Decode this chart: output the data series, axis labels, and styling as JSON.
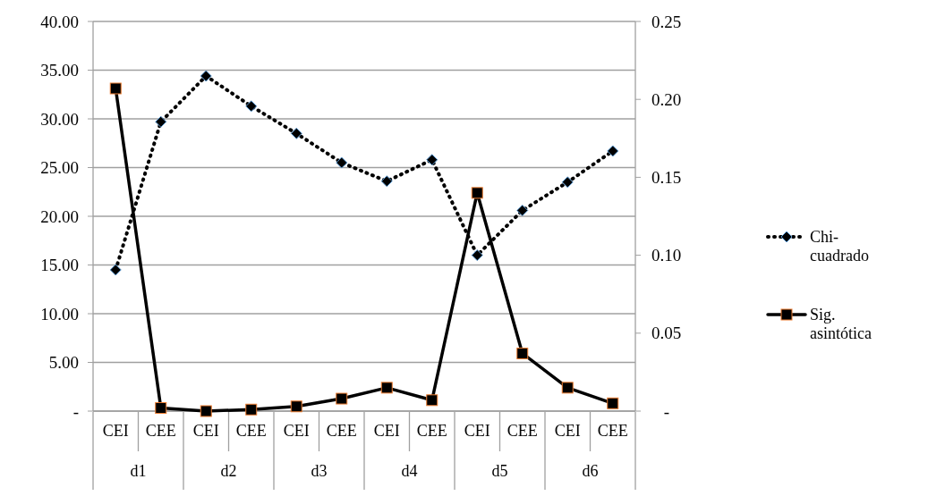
{
  "chart_data": {
    "type": "line",
    "categories": [
      "CEI",
      "CEE",
      "CEI",
      "CEE",
      "CEI",
      "CEE",
      "CEI",
      "CEE",
      "CEI",
      "CEE",
      "CEI",
      "CEE"
    ],
    "annotations": [
      "d1",
      "d2",
      "d3",
      "d4",
      "d5",
      "d6"
    ],
    "ylim": [
      0,
      40
    ],
    "yticks": [
      {
        "value": 0,
        "label": "-"
      },
      {
        "value": 5,
        "label": "5.00"
      },
      {
        "value": 10,
        "label": "10.00"
      },
      {
        "value": 15,
        "label": "15.00"
      },
      {
        "value": 20,
        "label": "20.00"
      },
      {
        "value": 25,
        "label": "25.00"
      },
      {
        "value": 30,
        "label": "30.00"
      },
      {
        "value": 35,
        "label": "35.00"
      },
      {
        "value": 40,
        "label": "40.00"
      }
    ],
    "y2lim": [
      0,
      0.25
    ],
    "y2ticks": [
      {
        "value": 0,
        "label": "-"
      },
      0.05,
      {
        "value": 0.1,
        "label": "0.10"
      },
      0.15,
      {
        "value": 0.2,
        "label": "0.20"
      },
      0.25
    ],
    "grid": "y",
    "legend": "right",
    "series": [
      {
        "name": "Chi-cuadrado",
        "color": "#000000",
        "marker": "diamond",
        "line_style": "dotted",
        "values": [
          14.5,
          29.7,
          34.4,
          31.3,
          28.5,
          25.5,
          23.6,
          25.8,
          16.0,
          20.6,
          23.5,
          26.7
        ]
      },
      {
        "name": "Sig. asintótica",
        "color": "#000000",
        "marker": "square",
        "line_style": "solid",
        "axis": "y2",
        "values": [
          0.207,
          0.002,
          0.0,
          0.001,
          0.003,
          0.008,
          0.015,
          0.007,
          0.14,
          0.037,
          0.015,
          0.005
        ]
      }
    ]
  }
}
